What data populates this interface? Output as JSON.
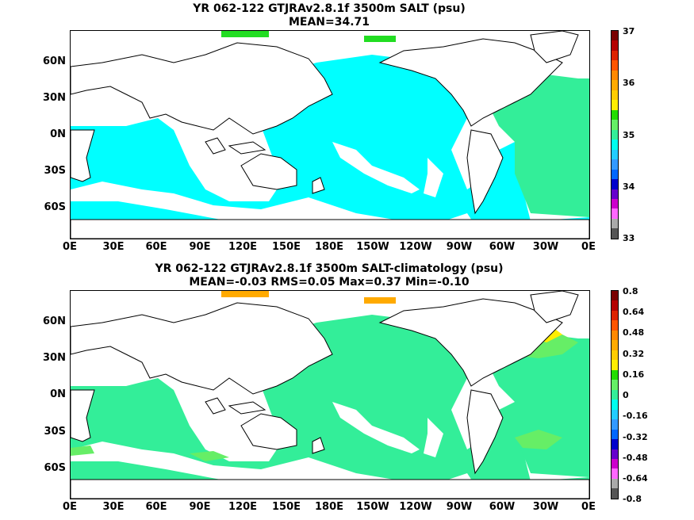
{
  "panel1": {
    "title": "YR 062-122 GTJRAv2.8.1f 3500m SALT (psu)",
    "subtitle": "MEAN=34.71",
    "colorbar": {
      "labels": [
        "37",
        "36",
        "35",
        "34",
        "33"
      ],
      "colors": [
        "#7a0000",
        "#b40000",
        "#dd2200",
        "#ff5500",
        "#ff8800",
        "#ffaa00",
        "#ffcc00",
        "#ffee00",
        "#22dd00",
        "#66ee66",
        "#33ee99",
        "#00ffee",
        "#22ccff",
        "#3399ff",
        "#0066ff",
        "#0000cc",
        "#6600cc",
        "#cc00cc",
        "#ff66ff",
        "#aaaaaa",
        "#555555"
      ]
    },
    "fill_colors": {
      "ocean": "#00ffff",
      "atlantic": "#33ee99",
      "highlight": "#22dd22"
    }
  },
  "panel2": {
    "title": "YR 062-122 GTJRAv2.8.1f 3500m SALT-climatology (psu)",
    "subtitle": "MEAN=-0.03   RMS=0.05   Max=0.37   Min=-0.10",
    "colorbar": {
      "labels": [
        "0.8",
        "0.64",
        "0.48",
        "0.32",
        "0.16",
        "0",
        "-0.16",
        "-0.32",
        "-0.48",
        "-0.64",
        "-0.8"
      ],
      "colors": [
        "#7a0000",
        "#b40000",
        "#dd2200",
        "#ff5500",
        "#ff8800",
        "#ffaa00",
        "#ffcc00",
        "#ffee00",
        "#22dd00",
        "#66ee66",
        "#33ee99",
        "#00ffee",
        "#22ccff",
        "#3399ff",
        "#0066ff",
        "#0000cc",
        "#6600cc",
        "#cc00cc",
        "#ff66ff",
        "#aaaaaa",
        "#555555"
      ]
    },
    "fill_colors": {
      "ocean": "#33ee99",
      "highlight": "#66ee66",
      "warm": "#ffee00",
      "orange": "#ffaa00"
    }
  },
  "axes": {
    "y_labels": [
      "60N",
      "30N",
      "0N",
      "30S",
      "60S"
    ],
    "x_labels": [
      "0E",
      "30E",
      "60E",
      "90E",
      "120E",
      "150E",
      "180E",
      "150W",
      "120W",
      "90W",
      "60W",
      "30W",
      "0E"
    ]
  }
}
